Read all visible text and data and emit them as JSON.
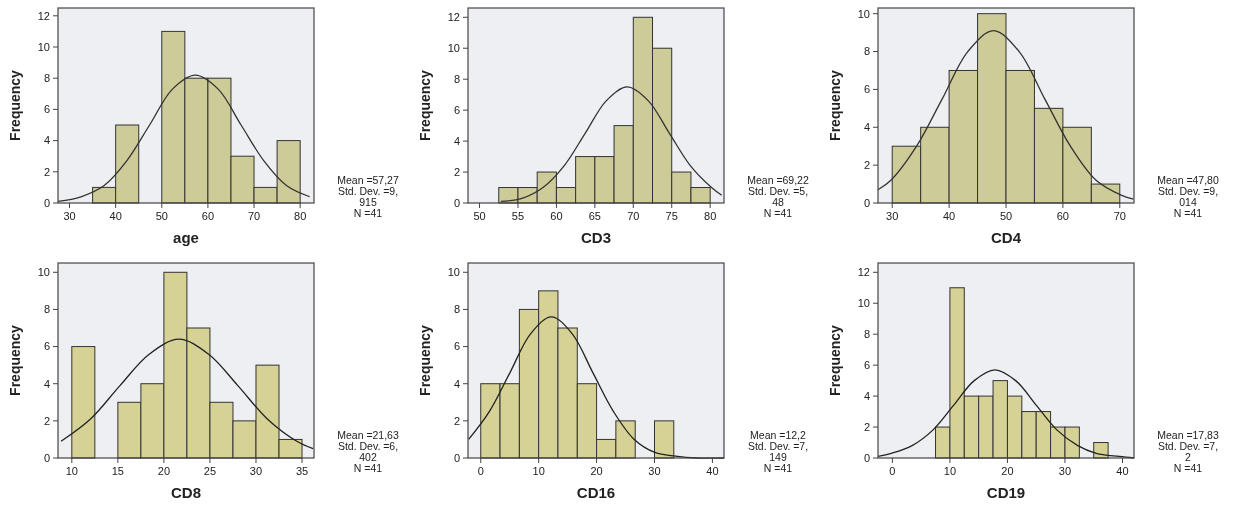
{
  "chart_data": [
    {
      "type": "histogram",
      "xlabel": "age",
      "ylabel": "Frequency",
      "bins": [
        35,
        40,
        45,
        50,
        55,
        60,
        65,
        70,
        75,
        80
      ],
      "values": [
        1,
        5,
        0,
        11,
        8,
        8,
        3,
        1,
        4
      ],
      "color": "#cdcb98",
      "xlim": [
        27.5,
        83
      ],
      "ylim": [
        0,
        12.5
      ],
      "xticks": [
        30,
        40,
        50,
        60,
        70,
        80
      ],
      "yticks": [
        0,
        2,
        4,
        6,
        8,
        10,
        12
      ],
      "series": [
        {
          "type": "line",
          "color": "#333333",
          "x": [
            27.53,
            32.48,
            37.44,
            42.4,
            47.36,
            52.31,
            57.27,
            62.23,
            67.19,
            72.14,
            77.1,
            82.06
          ],
          "values": [
            0.1,
            0.4,
            1.1,
            2.7,
            5.0,
            7.3,
            8.2,
            7.3,
            5.0,
            2.7,
            1.1,
            0.4
          ]
        }
      ],
      "annotations": [
        "Mean =57,27",
        "Std. Dev. =9,",
        "915",
        "N =41"
      ]
    },
    {
      "type": "histogram",
      "xlabel": "CD3",
      "ylabel": "Frequency",
      "bins": [
        52.5,
        55,
        57.5,
        60,
        62.5,
        65,
        67.5,
        70,
        72.5,
        75,
        77.5,
        80
      ],
      "values": [
        1,
        1,
        2,
        1,
        3,
        3,
        5,
        12,
        10,
        2,
        1
      ],
      "color": "#cdcb98",
      "xlim": [
        48.5,
        81.8
      ],
      "ylim": [
        0,
        12.6
      ],
      "xticks": [
        50,
        55,
        60,
        65,
        70,
        75,
        80
      ],
      "yticks": [
        0,
        2,
        4,
        6,
        8,
        10,
        12
      ],
      "series": [
        {
          "type": "line",
          "color": "#333333",
          "x": [
            52.78,
            55.52,
            58.26,
            61.0,
            63.74,
            66.48,
            69.22,
            71.96,
            74.7,
            77.44,
            80.18,
            81.5
          ],
          "values": [
            0.1,
            0.3,
            1.0,
            2.4,
            4.5,
            6.6,
            7.5,
            6.6,
            4.5,
            2.4,
            1.0,
            0.5
          ]
        }
      ],
      "annotations": [
        "Mean =69,22",
        "Std. Dev. =5,",
        "48",
        "N =41"
      ]
    },
    {
      "type": "histogram",
      "xlabel": "CD4",
      "ylabel": "Frequency",
      "bins": [
        30,
        35,
        40,
        45,
        50,
        55,
        60,
        65,
        70
      ],
      "values": [
        3,
        4,
        7,
        10,
        7,
        5,
        4,
        1
      ],
      "color": "#cdcb98",
      "xlim": [
        27.5,
        72.5
      ],
      "ylim": [
        0,
        10.3
      ],
      "xticks": [
        30,
        40,
        50,
        60,
        70
      ],
      "yticks": [
        0,
        2,
        4,
        6,
        8,
        10
      ],
      "series": [
        {
          "type": "line",
          "color": "#333333",
          "x": [
            27.5,
            29.77,
            34.28,
            38.79,
            43.29,
            47.8,
            52.31,
            56.81,
            61.32,
            65.83,
            70.34,
            72.4
          ],
          "values": [
            0.7,
            1.2,
            3.0,
            5.5,
            8.0,
            9.1,
            8.0,
            5.5,
            3.0,
            1.2,
            0.4,
            0.2
          ]
        }
      ],
      "annotations": [
        "Mean =47,80",
        "Std. Dev. =9,",
        "014",
        "N =41"
      ]
    },
    {
      "type": "histogram",
      "xlabel": "CD8",
      "ylabel": "Frequency",
      "bins": [
        10,
        12.5,
        15,
        17.5,
        20,
        22.5,
        25,
        27.5,
        30,
        32.5,
        35
      ],
      "values": [
        6,
        0,
        3,
        4,
        10,
        7,
        3,
        2,
        5,
        1
      ],
      "color": "#d6d296",
      "xlim": [
        8.5,
        36.3
      ],
      "ylim": [
        0,
        10.5
      ],
      "xticks": [
        10,
        15,
        20,
        25,
        30,
        35
      ],
      "yticks": [
        0,
        2,
        4,
        6,
        8,
        10
      ],
      "series": [
        {
          "type": "line",
          "color": "#222222",
          "x": [
            8.83,
            12.03,
            15.23,
            18.43,
            21.63,
            24.83,
            28.03,
            31.23,
            34.43,
            36.2
          ],
          "values": [
            0.9,
            2.1,
            3.9,
            5.6,
            6.4,
            5.6,
            3.9,
            2.1,
            0.9,
            0.5
          ]
        }
      ],
      "annotations": [
        "Mean =21,63",
        "Std. Dev. =6,",
        "402",
        "N =41"
      ]
    },
    {
      "type": "histogram",
      "xlabel": "CD16",
      "ylabel": "Frequency",
      "bins": [
        0,
        3.33,
        6.67,
        10,
        13.33,
        16.67,
        20,
        23.33,
        26.67,
        30,
        33.33
      ],
      "values": [
        4,
        4,
        8,
        9,
        7,
        4,
        1,
        2,
        0,
        2
      ],
      "color": "#d6d296",
      "xlim": [
        -2.2,
        42
      ],
      "ylim": [
        0,
        10.5
      ],
      "xticks": [
        0,
        10,
        20,
        30,
        40
      ],
      "yticks": [
        0,
        2,
        4,
        6,
        8,
        10
      ],
      "series": [
        {
          "type": "line",
          "color": "#222222",
          "x": [
            -2.1,
            1.48,
            5.05,
            8.63,
            12.2,
            15.77,
            19.35,
            22.92,
            26.5,
            30.07,
            33.65,
            37.22,
            42
          ],
          "values": [
            1.0,
            2.5,
            4.6,
            6.7,
            7.6,
            6.7,
            4.6,
            2.5,
            1.0,
            0.3,
            0.1,
            0.0,
            0.0
          ]
        }
      ],
      "annotations": [
        "Mean =12,2",
        "Std. Dev. =7,",
        "149",
        "N =41"
      ]
    },
    {
      "type": "histogram",
      "xlabel": "CD19",
      "ylabel": "Frequency",
      "bins": [
        7.5,
        10,
        12.5,
        15,
        17.5,
        20,
        22.5,
        25,
        27.5,
        30,
        32.5,
        35,
        37.5
      ],
      "values": [
        2,
        11,
        4,
        4,
        5,
        4,
        3,
        3,
        2,
        2,
        0,
        1
      ],
      "color": "#d6d296",
      "xlim": [
        -2.5,
        42
      ],
      "ylim": [
        0,
        12.6
      ],
      "xticks": [
        0,
        10,
        20,
        30,
        40
      ],
      "yticks": [
        0,
        2,
        4,
        6,
        8,
        10,
        12
      ],
      "series": [
        {
          "type": "line",
          "color": "#222222",
          "x": [
            -2.5,
            -0.17,
            3.43,
            7.03,
            10.63,
            14.23,
            17.83,
            21.43,
            25.03,
            28.63,
            32.23,
            35.43,
            39.43,
            42
          ],
          "values": [
            0.1,
            0.3,
            0.8,
            1.8,
            3.4,
            5.0,
            5.7,
            5.0,
            3.4,
            1.8,
            0.8,
            0.3,
            0.1,
            0.0
          ]
        }
      ],
      "annotations": [
        "Mean =17,83",
        "Std. Dev. =7,",
        "2",
        "N =41"
      ]
    }
  ]
}
